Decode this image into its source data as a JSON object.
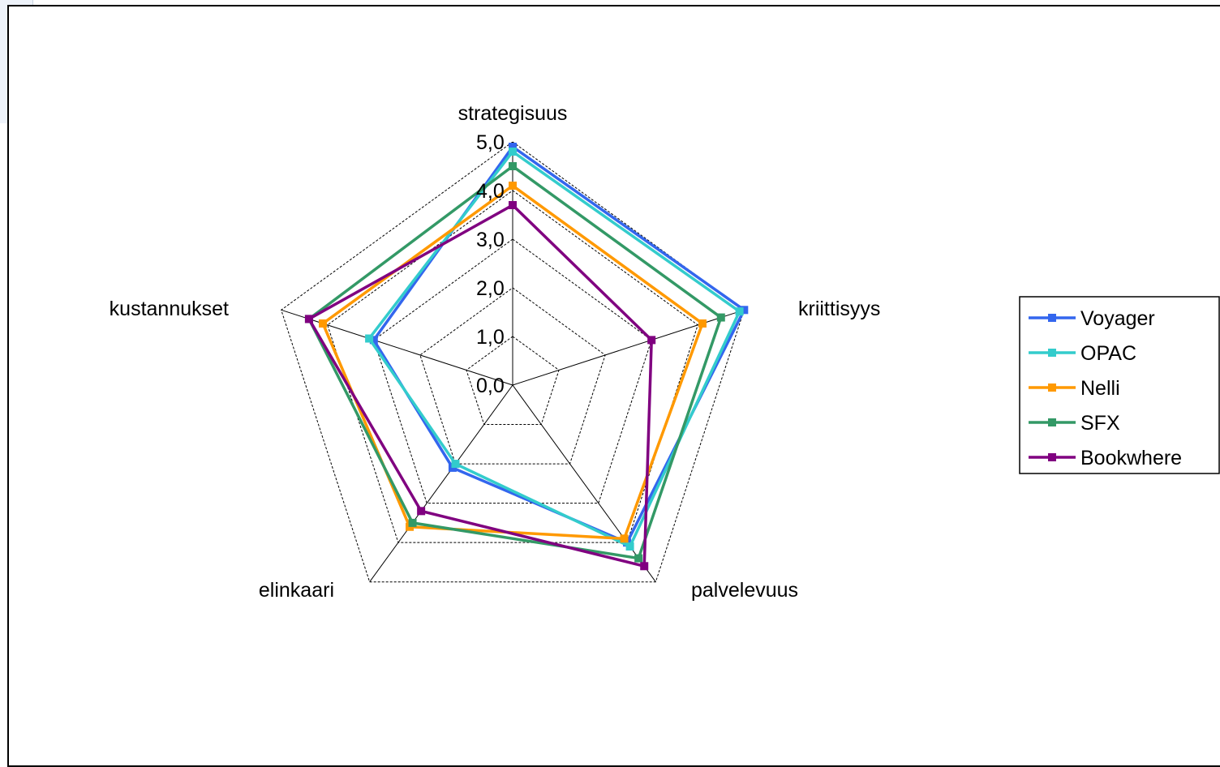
{
  "chart_data": {
    "type": "radar",
    "axes": [
      "strategisuus",
      "kriittisyys",
      "palvelevuus",
      "elinkaari",
      "kustannukset"
    ],
    "ticks": [
      "0,0",
      "1,0",
      "2,0",
      "3,0",
      "4,0",
      "5,0"
    ],
    "rmax": 5,
    "grid": true,
    "legend_position": "right",
    "series": [
      {
        "name": "Voyager",
        "color": "#3366ee",
        "values": [
          4.9,
          5.0,
          4.0,
          2.1,
          3.0
        ]
      },
      {
        "name": "OPAC",
        "color": "#33cccc",
        "values": [
          4.8,
          4.9,
          4.1,
          2.0,
          3.1
        ]
      },
      {
        "name": "Nelli",
        "color": "#ff9900",
        "values": [
          4.1,
          4.1,
          3.9,
          3.6,
          4.1
        ]
      },
      {
        "name": "SFX",
        "color": "#339966",
        "values": [
          4.5,
          4.5,
          4.4,
          3.5,
          4.4
        ]
      },
      {
        "name": "Bookwhere",
        "color": "#800080",
        "values": [
          3.7,
          3.0,
          4.6,
          3.2,
          4.4
        ]
      }
    ]
  }
}
